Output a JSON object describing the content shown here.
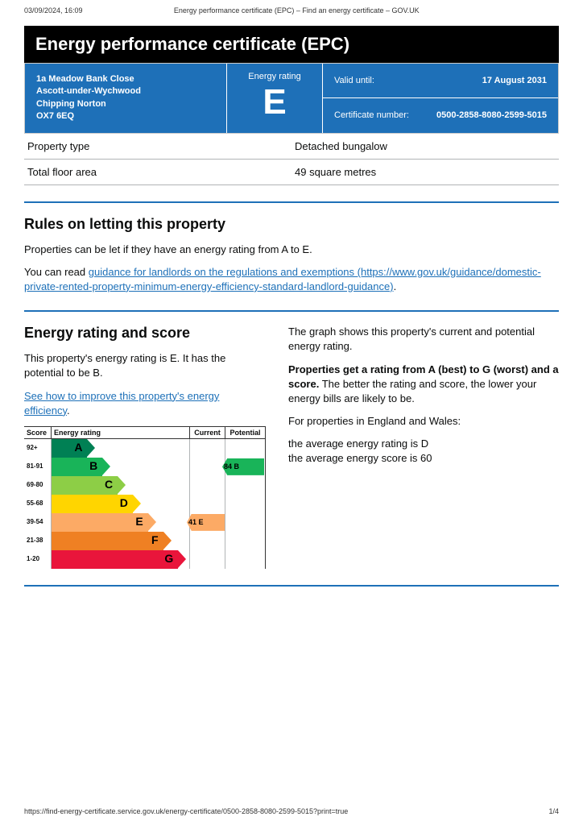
{
  "print": {
    "timestamp": "03/09/2024, 16:09",
    "header_title": "Energy performance certificate (EPC) – Find an energy certificate – GOV.UK",
    "footer_url": "https://find-energy-certificate.service.gov.uk/energy-certificate/0500-2858-8080-2599-5015?print=true",
    "page_no": "1/4"
  },
  "title": "Energy performance certificate (EPC)",
  "header": {
    "address_lines": [
      "1a Meadow Bank Close",
      "Ascott-under-Wychwood",
      "Chipping Norton",
      "OX7 6EQ"
    ],
    "rating_label": "Energy rating",
    "rating_letter": "E",
    "valid_label": "Valid until:",
    "valid_value": "17 August 2031",
    "cert_label": "Certificate number:",
    "cert_value": "0500-2858-8080-2599-5015",
    "blue": "#1e70b8"
  },
  "property_rows": [
    {
      "label": "Property type",
      "value": "Detached bungalow"
    },
    {
      "label": "Total floor area",
      "value": "49 square metres"
    }
  ],
  "rules": {
    "heading": "Rules on letting this property",
    "p1": "Properties can be let if they have an energy rating from A to E.",
    "p2_pre": "You can read ",
    "link_text": "guidance for landlords on the regulations and exemptions (https://www.gov.uk/guidance/domestic-private-rented-property-minimum-energy-efficiency-standard-landlord-guidance)",
    "p2_post": "."
  },
  "rating_section": {
    "heading": "Energy rating and score",
    "left_p1": "This property's energy rating is E. It has the potential to be B.",
    "left_link": "See how to improve this property's energy efficiency",
    "right_p1": "The graph shows this property's current and potential energy rating.",
    "right_p2_bold": "Properties get a rating from A (best) to G (worst) and a score.",
    "right_p2_rest": " The better the rating and score, the lower your energy bills are likely to be.",
    "right_p3": "For properties in England and Wales:",
    "right_p4a": "the average energy rating is D",
    "right_p4b": "the average energy score is 60"
  },
  "chart": {
    "head": {
      "score": "Score",
      "rating": "Energy rating",
      "current": "Current",
      "potential": "Potential"
    },
    "bands": [
      {
        "score": "92+",
        "letter": "A",
        "color": "#008054",
        "width_pct": 26
      },
      {
        "score": "81-91",
        "letter": "B",
        "color": "#19b459",
        "width_pct": 37
      },
      {
        "score": "69-80",
        "letter": "C",
        "color": "#8dce46",
        "width_pct": 48
      },
      {
        "score": "55-68",
        "letter": "D",
        "color": "#ffd500",
        "width_pct": 59
      },
      {
        "score": "39-54",
        "letter": "E",
        "color": "#fcaa65",
        "width_pct": 70
      },
      {
        "score": "21-38",
        "letter": "F",
        "color": "#ef8023",
        "width_pct": 81
      },
      {
        "score": "1-20",
        "letter": "G",
        "color": "#e9153b",
        "width_pct": 92
      }
    ],
    "current": {
      "band_index": 4,
      "text": "41  E",
      "color": "#fcaa65"
    },
    "potential": {
      "band_index": 1,
      "text": "84  B",
      "color": "#19b459"
    }
  }
}
